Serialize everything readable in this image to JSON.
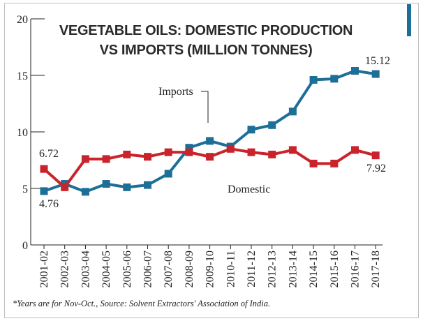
{
  "chart_data": {
    "type": "line",
    "title_lines": [
      "VEGETABLE OILS: DOMESTIC PRODUCTION",
      "VS IMPORTS (MILLION TONNES)"
    ],
    "categories": [
      "2001-02",
      "2002-03",
      "2003-04",
      "2004-05",
      "2005-06",
      "2006-07",
      "2007-08",
      "2008-09",
      "2009-10",
      "2010-11",
      "2011-12",
      "2012-13",
      "2013-14",
      "2014-15",
      "2015-16",
      "2016-17",
      "2017-18"
    ],
    "ylim": [
      0,
      20
    ],
    "yticks": [
      0,
      5,
      10,
      15,
      20
    ],
    "grid": false,
    "series": [
      {
        "name": "Imports",
        "color": "#1d6f98",
        "values": [
          4.76,
          5.4,
          4.7,
          5.4,
          5.1,
          5.3,
          6.3,
          8.6,
          9.2,
          8.7,
          10.2,
          10.6,
          11.8,
          14.6,
          14.7,
          15.4,
          15.12
        ]
      },
      {
        "name": "Domestic",
        "color": "#c9242b",
        "values": [
          6.72,
          5.1,
          7.6,
          7.6,
          8.0,
          7.8,
          8.2,
          8.2,
          7.8,
          8.5,
          8.2,
          8.0,
          8.4,
          7.2,
          7.2,
          8.4,
          7.92
        ]
      }
    ],
    "annotations": {
      "imports_start": "4.76",
      "imports_end": "15.12",
      "domestic_start": "6.72",
      "domestic_end": "7.92"
    }
  },
  "footnote": "*Years are for Nov-Oct., Source: Solvent Extractors' Association of India."
}
